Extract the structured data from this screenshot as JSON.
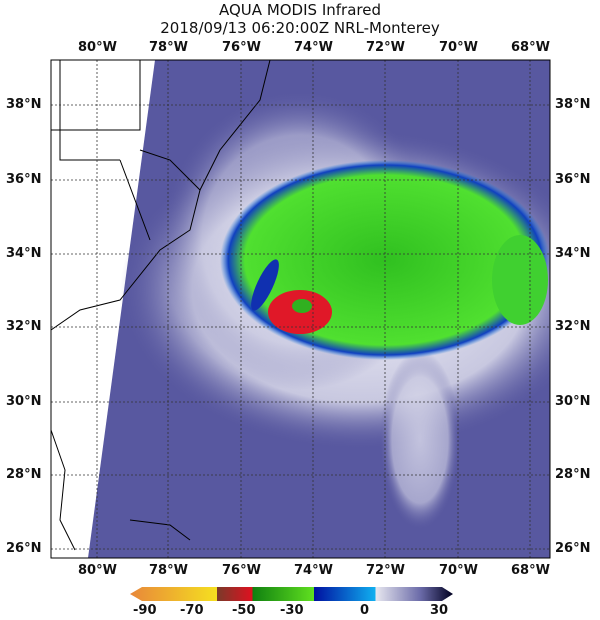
{
  "title": "AQUA MODIS Infrared",
  "subtitle": "2018/09/13 06:20:00Z NRL-Monterey",
  "lon_labels": [
    "80°W",
    "78°W",
    "76°W",
    "74°W",
    "72°W",
    "70°W",
    "68°W"
  ],
  "lat_labels": [
    "38°N",
    "36°N",
    "34°N",
    "32°N",
    "30°N",
    "28°N",
    "26°N"
  ],
  "colorbar": {
    "ticks": [
      "-90",
      "-70",
      "-50",
      "-30",
      "0",
      "30"
    ],
    "colors": [
      "#e8873a",
      "#f5e020",
      "#7a3a2a",
      "#e01020",
      "#108010",
      "#60e020",
      "#0010a0",
      "#10b0f0",
      "#e8e8f0",
      "#6a6aa8",
      "#000020"
    ]
  }
}
